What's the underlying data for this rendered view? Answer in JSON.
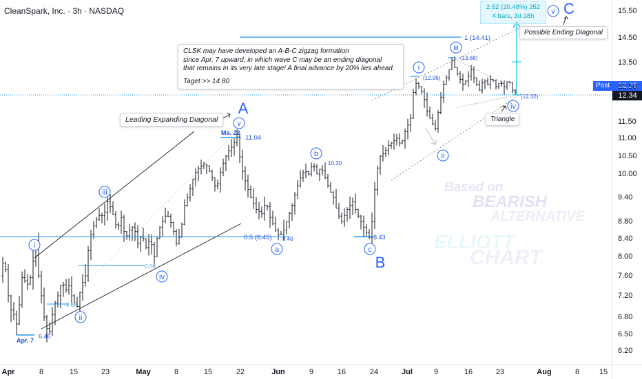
{
  "header": {
    "title": "CleanSpark, Inc. · 3h · NASDAQ"
  },
  "chart_data": {
    "type": "candlestick",
    "symbol": "CleanSpark, Inc.",
    "interval": "3h",
    "exchange": "NASDAQ",
    "ylim": [
      6.0,
      15.9
    ],
    "y_ticks": [
      "15.50",
      "14.50",
      "13.50",
      "12.50",
      "11.50",
      "11.00",
      "10.50",
      "10.00",
      "9.40",
      "8.80",
      "8.40",
      "8.00",
      "7.60",
      "7.20",
      "6.80",
      "6.50",
      "6.20"
    ],
    "x_ticks": [
      {
        "label": "Apr",
        "month": true
      },
      {
        "label": "8",
        "month": false
      },
      {
        "label": "15",
        "month": false
      },
      {
        "label": "23",
        "month": false
      },
      {
        "label": "May",
        "month": true
      },
      {
        "label": "8",
        "month": false
      },
      {
        "label": "15",
        "month": false
      },
      {
        "label": "22",
        "month": false
      },
      {
        "label": "Jun",
        "month": true
      },
      {
        "label": "9",
        "month": false
      },
      {
        "label": "16",
        "month": false
      },
      {
        "label": "24",
        "month": false
      },
      {
        "label": "Jul",
        "month": true
      },
      {
        "label": "9",
        "month": false
      },
      {
        "label": "16",
        "month": false
      },
      {
        "label": "23",
        "month": false
      },
      {
        "label": "Aug",
        "month": true
      },
      {
        "label": "8",
        "month": false
      },
      {
        "label": "15",
        "month": false
      }
    ],
    "price_path": [
      [
        0,
        7.6
      ],
      [
        6,
        8.0
      ],
      [
        12,
        7.2
      ],
      [
        18,
        6.8
      ],
      [
        22,
        6.9
      ],
      [
        26,
        6.46
      ],
      [
        30,
        7.6
      ],
      [
        36,
        7.5
      ],
      [
        42,
        7.4
      ],
      [
        48,
        7.9
      ],
      [
        52,
        8.3
      ],
      [
        56,
        7.6
      ],
      [
        60,
        7.2
      ],
      [
        64,
        6.8
      ],
      [
        68,
        6.6
      ],
      [
        72,
        6.55
      ],
      [
        78,
        7.0
      ],
      [
        84,
        7.2
      ],
      [
        90,
        7.5
      ],
      [
        95,
        7.3
      ],
      [
        100,
        7.4
      ],
      [
        106,
        7.1
      ],
      [
        112,
        7.0
      ],
      [
        118,
        7.4
      ],
      [
        124,
        7.6
      ],
      [
        130,
        8.4
      ],
      [
        138,
        8.8
      ],
      [
        146,
        9.0
      ],
      [
        150,
        8.9
      ],
      [
        156,
        9.3
      ],
      [
        162,
        9.1
      ],
      [
        170,
        8.6
      ],
      [
        176,
        8.9
      ],
      [
        182,
        8.4
      ],
      [
        188,
        8.6
      ],
      [
        194,
        8.7
      ],
      [
        200,
        8.3
      ],
      [
        206,
        8.5
      ],
      [
        212,
        8.2
      ],
      [
        218,
        8.4
      ],
      [
        224,
        8.0
      ],
      [
        230,
        8.6
      ],
      [
        236,
        8.8
      ],
      [
        242,
        9.0
      ],
      [
        250,
        8.7
      ],
      [
        256,
        8.3
      ],
      [
        262,
        8.5
      ],
      [
        268,
        9.2
      ],
      [
        274,
        9.5
      ],
      [
        282,
        10.0
      ],
      [
        290,
        10.2
      ],
      [
        298,
        10.3
      ],
      [
        306,
        10.0
      ],
      [
        314,
        9.6
      ],
      [
        322,
        10.2
      ],
      [
        330,
        10.6
      ],
      [
        338,
        10.8
      ],
      [
        344,
        11.04
      ],
      [
        350,
        10.2
      ],
      [
        358,
        9.7
      ],
      [
        364,
        9.4
      ],
      [
        372,
        9.1
      ],
      [
        380,
        9.0
      ],
      [
        386,
        9.3
      ],
      [
        392,
        8.9
      ],
      [
        400,
        8.6
      ],
      [
        406,
        8.45
      ],
      [
        412,
        8.6
      ],
      [
        418,
        8.9
      ],
      [
        424,
        9.2
      ],
      [
        430,
        9.6
      ],
      [
        436,
        9.9
      ],
      [
        442,
        10.1
      ],
      [
        448,
        10.0
      ],
      [
        454,
        10.3
      ],
      [
        460,
        10.0
      ],
      [
        466,
        10.2
      ],
      [
        472,
        9.9
      ],
      [
        478,
        9.6
      ],
      [
        484,
        9.4
      ],
      [
        490,
        9.0
      ],
      [
        496,
        8.8
      ],
      [
        504,
        9.1
      ],
      [
        512,
        9.3
      ],
      [
        518,
        9.0
      ],
      [
        524,
        8.8
      ],
      [
        530,
        8.6
      ],
      [
        536,
        8.43
      ],
      [
        540,
        8.8
      ],
      [
        546,
        10.0
      ],
      [
        552,
        10.5
      ],
      [
        558,
        10.6
      ],
      [
        564,
        10.8
      ],
      [
        570,
        10.9
      ],
      [
        576,
        11.0
      ],
      [
        582,
        10.8
      ],
      [
        588,
        11.2
      ],
      [
        596,
        11.6
      ],
      [
        602,
        12.7
      ],
      [
        608,
        12.5
      ],
      [
        614,
        12.3
      ],
      [
        620,
        11.8
      ],
      [
        626,
        11.5
      ],
      [
        632,
        11.3
      ],
      [
        638,
        12.0
      ],
      [
        644,
        12.6
      ],
      [
        650,
        13.0
      ],
      [
        656,
        13.6
      ],
      [
        660,
        13.3
      ],
      [
        666,
        12.9
      ],
      [
        672,
        12.6
      ],
      [
        678,
        12.8
      ],
      [
        684,
        13.2
      ],
      [
        690,
        12.7
      ],
      [
        696,
        12.4
      ],
      [
        702,
        12.8
      ],
      [
        708,
        12.6
      ],
      [
        714,
        12.9
      ],
      [
        720,
        12.5
      ],
      [
        726,
        12.7
      ],
      [
        732,
        12.5
      ],
      [
        738,
        12.8
      ],
      [
        744,
        12.4
      ],
      [
        748,
        12.35
      ]
    ],
    "wave_labels": {
      "i": "i",
      "ii": "ii",
      "iii": "iii",
      "iv": "iv",
      "v": "v",
      "a": "a",
      "b": "b",
      "c": "c",
      "A": "A",
      "B": "B",
      "C": "C"
    },
    "annotations": {
      "apr7": "Apr. 7",
      "low_646": "6.46",
      "ma22": "Ma. 22",
      "high_1104": "11.04",
      "fib_05": "0.5 (8.45)",
      "low_840": "8.40",
      "high_1030": "10.30",
      "low_843": "8.43",
      "fib_066a": "0.66",
      "fib_066b": "0.66",
      "target_1": "1 (14.41)",
      "p_1296": "(12.96)",
      "p_1368": "(13.68)",
      "p_1232": "(12.32)"
    },
    "leading_label": "Leading Expanding Diagonal",
    "triangle_label": "Triangle",
    "ending_label": "Possible Ending Diagonal",
    "measure": {
      "line1": "2.52 (20.48%) 252",
      "line2": "4 bars, 3d 18h"
    },
    "note": {
      "line1": "CLSK may have developed an A-B-C zigzag formation",
      "line2": "since Apr. 7 upward, in which wave C may be an ending diagonal",
      "line3": "that remains in its very late stage! A final advance by 20% lies ahead.",
      "line4": "Taget >> 14.80"
    },
    "watermark": {
      "l1": "Based on",
      "l2": "BEARISH",
      "l3": "ALTERNATIVE",
      "l4": "ELLIOTT",
      "l5": "CHART"
    },
    "post_price": {
      "tag": "Post",
      "value": "12.35"
    },
    "last_price": {
      "value": "12.34"
    },
    "colors": {
      "wave": "#2962ff",
      "blue_line": "#2196f3",
      "trend": "#131722",
      "cyan": "#00bcd4",
      "candle": "#131722"
    }
  }
}
